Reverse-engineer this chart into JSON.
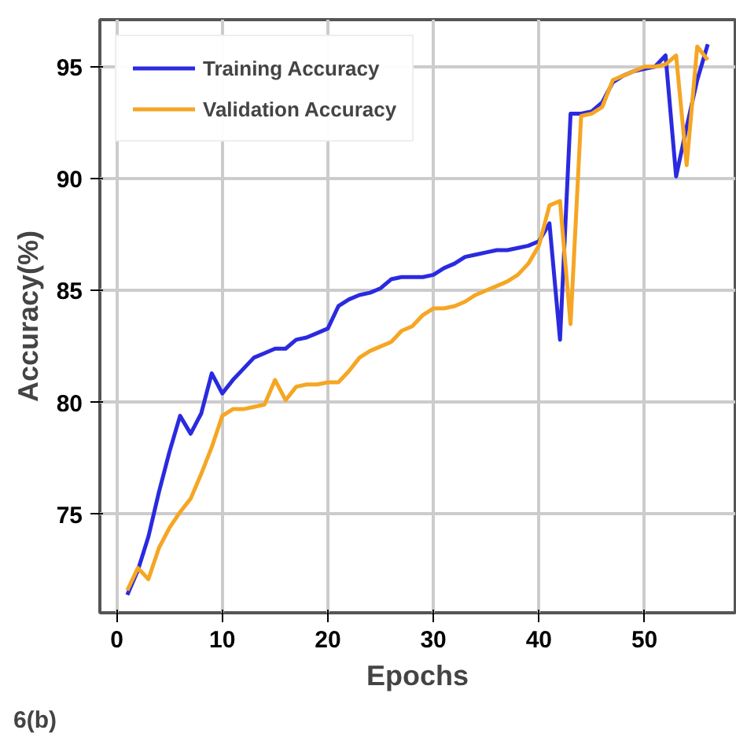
{
  "chart_data": {
    "type": "line",
    "xlabel": "Epochs",
    "ylabel": "Accuracy(%)",
    "annotations": [
      "6(b)"
    ],
    "x": [
      1,
      2,
      3,
      4,
      5,
      6,
      7,
      8,
      9,
      10,
      11,
      12,
      13,
      14,
      15,
      16,
      17,
      18,
      19,
      20,
      21,
      22,
      23,
      24,
      25,
      26,
      27,
      28,
      29,
      30,
      31,
      32,
      33,
      34,
      35,
      36,
      37,
      38,
      39,
      40,
      41,
      42,
      43,
      44,
      45,
      46,
      47,
      48,
      49,
      50,
      51,
      52,
      53,
      54,
      55,
      56
    ],
    "series": [
      {
        "name": "Training Accuracy",
        "color": "#2a2ae0",
        "values": [
          71.4,
          72.5,
          74.0,
          76.0,
          77.8,
          79.4,
          78.6,
          79.5,
          81.3,
          80.4,
          81.0,
          81.5,
          82.0,
          82.2,
          82.4,
          82.4,
          82.8,
          82.9,
          83.1,
          83.3,
          84.3,
          84.6,
          84.8,
          84.9,
          85.1,
          85.5,
          85.6,
          85.6,
          85.6,
          85.7,
          86.0,
          86.2,
          86.5,
          86.6,
          86.7,
          86.8,
          86.8,
          86.9,
          87.0,
          87.2,
          88.0,
          82.8,
          92.9,
          92.9,
          93.0,
          93.4,
          94.3,
          94.6,
          94.8,
          94.9,
          95.0,
          95.5,
          90.1,
          92.3,
          94.4,
          96.0
        ]
      },
      {
        "name": "Validation Accuracy",
        "color": "#f5a623",
        "values": [
          71.6,
          72.6,
          72.1,
          73.5,
          74.4,
          75.1,
          75.7,
          76.8,
          78.0,
          79.4,
          79.7,
          79.7,
          79.8,
          79.9,
          81.0,
          80.1,
          80.7,
          80.8,
          80.8,
          80.9,
          80.9,
          81.4,
          82.0,
          82.3,
          82.5,
          82.7,
          83.2,
          83.4,
          83.9,
          84.2,
          84.2,
          84.3,
          84.5,
          84.8,
          85.0,
          85.2,
          85.4,
          85.7,
          86.2,
          87.0,
          88.8,
          89.0,
          83.5,
          92.8,
          92.9,
          93.2,
          94.4,
          94.6,
          94.8,
          95.0,
          95.0,
          95.1,
          95.5,
          90.6,
          95.9,
          95.3
        ]
      }
    ],
    "xlim": [
      -1.6,
      58.6
    ],
    "ylim": [
      70.6,
      97.1
    ],
    "xticks": [
      0,
      10,
      20,
      30,
      40,
      50
    ],
    "yticks": [
      75,
      80,
      85,
      90,
      95
    ],
    "grid": true,
    "legend": "top left"
  }
}
